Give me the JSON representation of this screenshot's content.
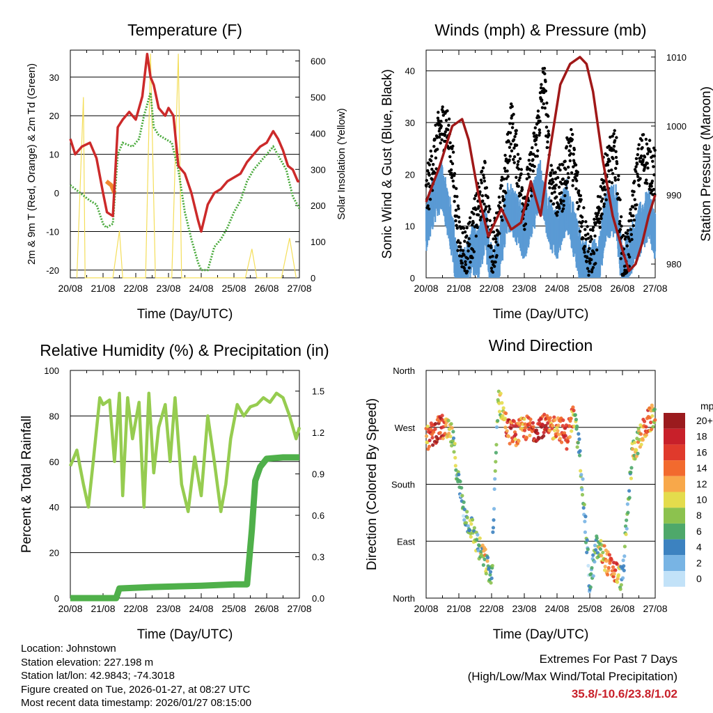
{
  "panels": {
    "temperature": {
      "title": "Temperature (F)",
      "ylabel_left": "2m & 9m T (Red, Orange) & 2m Td (Green)",
      "ylabel_right": "Solar Insolation (Yellow)",
      "xlabel": "Time (Day/UTC)"
    },
    "winds": {
      "title": "Winds (mph) & Pressure (mb)",
      "ylabel_left": "Sonic Wind & Gust (Blue, Black)",
      "ylabel_right": "Station Pressure (Maroon)",
      "xlabel": "Time (Day/UTC)"
    },
    "humidity": {
      "title": "Relative Humidity (%) & Precipitation (in)",
      "ylabel_left": "Percent & Total Rainfall",
      "xlabel": "Time (Day/UTC)"
    },
    "direction": {
      "title": "Wind Direction",
      "ylabel_left": "Direction (Colored By Speed)",
      "xlabel": "Time (Day/UTC)",
      "colorbar_title": "mph",
      "colorbar_labels": [
        "20+",
        "18",
        "16",
        "14",
        "12",
        "10",
        "8",
        "6",
        "4",
        "2",
        "0"
      ],
      "colorbar_colors": [
        "#9b1b1e",
        "#c8202a",
        "#e03a2c",
        "#f26a2e",
        "#f8a84a",
        "#e4dc4c",
        "#8cc24e",
        "#4ea86a",
        "#3c82c0",
        "#78b4e4",
        "#c2e2f8"
      ]
    }
  },
  "info": {
    "location": "Location: Johnstown",
    "elevation": "Station elevation: 227.198 m",
    "latlon": "Station lat/lon: 42.9843; -74.3018",
    "created": "Figure created on Tue, 2026-01-27, at 08:27 UTC",
    "recent": "Most recent data timestamp: 2026/01/27 08:15:00"
  },
  "extremes": {
    "title": "Extremes For Past 7 Days",
    "subtitle": "(High/Low/Max Wind/Total Precipitation)",
    "values": "35.8/-10.6/23.8/1.02"
  },
  "colors": {
    "temp2m": "#cc2a2a",
    "temp9m": "#f08a30",
    "dewpoint": "#4aaa3c",
    "solar": "#f4de5a",
    "wind": "#5a9ad4",
    "gust": "#000000",
    "pressure": "#a01818",
    "rh": "#96cc50",
    "precip": "#4fb04a"
  },
  "chart_data": [
    {
      "type": "line",
      "title": "Temperature (F)",
      "x_ticks": [
        "20/08",
        "21/08",
        "22/08",
        "23/08",
        "24/08",
        "25/08",
        "26/08",
        "27/08"
      ],
      "ylim": [
        -22,
        37
      ],
      "yticks": [
        -20,
        -10,
        0,
        10,
        20,
        30
      ],
      "y2lim": [
        0,
        630
      ],
      "y2ticks": [
        0,
        100,
        200,
        300,
        400,
        500,
        600
      ],
      "series": [
        {
          "name": "2m T",
          "x": [
            0,
            0.15,
            0.35,
            0.6,
            0.8,
            1.0,
            1.12,
            1.3,
            1.45,
            1.6,
            1.8,
            2.0,
            2.2,
            2.35,
            2.45,
            2.55,
            2.7,
            2.9,
            3.0,
            3.15,
            3.3,
            3.5,
            3.7,
            3.9,
            4.0,
            4.2,
            4.4,
            4.6,
            4.8,
            5.0,
            5.2,
            5.4,
            5.6,
            5.8,
            6.0,
            6.2,
            6.35,
            6.5,
            6.65,
            6.8,
            6.95,
            7.0
          ],
          "values": [
            14,
            10,
            12,
            13,
            9,
            0,
            -5,
            -6,
            17,
            19,
            21,
            19,
            25,
            36,
            30,
            28,
            22,
            20,
            22,
            20,
            7,
            5,
            0,
            -7,
            -10,
            -3,
            0,
            1,
            3,
            4,
            5,
            8,
            10,
            12,
            13,
            16,
            14,
            11,
            7,
            6,
            3,
            3
          ]
        },
        {
          "name": "9m T",
          "x": [
            1.1,
            1.25,
            1.35
          ],
          "values": [
            3,
            2,
            0
          ]
        },
        {
          "name": "2m Td",
          "x": [
            0,
            0.3,
            0.6,
            0.8,
            1.0,
            1.1,
            1.3,
            1.45,
            1.6,
            1.9,
            2.1,
            2.25,
            2.45,
            2.55,
            2.7,
            2.9,
            3.1,
            3.3,
            3.5,
            3.7,
            3.9,
            4.0,
            4.2,
            4.4,
            4.6,
            4.8,
            5.0,
            5.2,
            5.4,
            5.6,
            5.8,
            6.0,
            6.2,
            6.4,
            6.6,
            6.8,
            7.0
          ],
          "values": [
            2,
            0,
            -2,
            -3,
            -8,
            -9,
            -8,
            10,
            13,
            12,
            14,
            20,
            26,
            17,
            15,
            14,
            13,
            6,
            -5,
            -12,
            -18,
            -20,
            -20,
            -14,
            -12,
            -9,
            -5,
            -2,
            3,
            6,
            8,
            10,
            12,
            9,
            6,
            -1,
            -4
          ]
        },
        {
          "name": "Solar Insolation",
          "x": [
            0.2,
            0.4,
            0.45,
            0.6,
            1.3,
            1.5,
            1.6,
            2.3,
            2.45,
            2.6,
            3.1,
            3.3,
            3.4,
            3.55,
            5.35,
            5.55,
            5.7,
            6.45,
            6.7,
            6.9
          ],
          "values": [
            0,
            500,
            0,
            0,
            0,
            130,
            0,
            0,
            620,
            0,
            0,
            620,
            0,
            0,
            0,
            80,
            0,
            0,
            110,
            0
          ]
        }
      ]
    },
    {
      "type": "scatter",
      "title": "Winds (mph) & Pressure (mb)",
      "x_ticks": [
        "20/08",
        "21/08",
        "22/08",
        "23/08",
        "24/08",
        "25/08",
        "26/08",
        "27/08"
      ],
      "ylim": [
        0,
        44
      ],
      "yticks": [
        0,
        10,
        20,
        30,
        40
      ],
      "y2lim": [
        978,
        1011
      ],
      "y2ticks": [
        980,
        990,
        1000,
        1010
      ],
      "series": [
        {
          "name": "Sonic Wind",
          "x": [
            0,
            0.3,
            0.5,
            0.8,
            1.0,
            1.2,
            1.4,
            1.6,
            1.8,
            2.0,
            2.2,
            2.5,
            2.8,
            3.0,
            3.3,
            3.5,
            3.8,
            4.0,
            4.3,
            4.5,
            4.7,
            5.0,
            5.3,
            5.5,
            5.8,
            6.0,
            6.3,
            6.6,
            6.8,
            7.0
          ],
          "values": [
            12,
            18,
            20,
            10,
            2,
            3,
            8,
            6,
            12,
            3,
            5,
            16,
            13,
            10,
            16,
            20,
            12,
            10,
            16,
            11,
            6,
            3,
            6,
            14,
            15,
            3,
            8,
            12,
            14,
            10
          ]
        },
        {
          "name": "Gust",
          "x": [
            0,
            0.2,
            0.4,
            0.6,
            0.8,
            1.0,
            1.2,
            1.4,
            1.6,
            1.8,
            2.0,
            2.2,
            2.4,
            2.6,
            2.8,
            3.0,
            3.2,
            3.4,
            3.6,
            3.8,
            4.0,
            4.2,
            4.4,
            4.6,
            4.8,
            5.0,
            5.2,
            5.4,
            5.6,
            5.8,
            6.0,
            6.2,
            6.4,
            6.6,
            6.8,
            7.0
          ],
          "values": [
            15,
            22,
            28,
            30,
            22,
            8,
            5,
            8,
            14,
            18,
            5,
            10,
            18,
            30,
            22,
            14,
            20,
            28,
            38,
            20,
            16,
            18,
            26,
            18,
            10,
            4,
            8,
            18,
            22,
            24,
            3,
            6,
            18,
            24,
            22,
            20
          ]
        },
        {
          "name": "Station Pressure",
          "x": [
            0,
            0.4,
            0.8,
            1.1,
            1.3,
            1.6,
            1.9,
            2.1,
            2.3,
            2.6,
            2.9,
            3.2,
            3.5,
            3.8,
            4.1,
            4.4,
            4.7,
            4.9,
            5.1,
            5.4,
            5.7,
            6.0,
            6.2,
            6.4,
            6.6,
            6.8,
            7.0
          ],
          "values": [
            989,
            994,
            1000,
            1001,
            998,
            990,
            984,
            986,
            988,
            985,
            986,
            992,
            987,
            997,
            1006,
            1009,
            1010,
            1009,
            1005,
            995,
            987,
            982,
            979,
            980,
            983,
            987,
            990
          ]
        }
      ]
    },
    {
      "type": "line",
      "title": "Relative Humidity (%) & Precipitation (in)",
      "x_ticks": [
        "20/08",
        "21/08",
        "22/08",
        "23/08",
        "24/08",
        "25/08",
        "26/08",
        "27/08"
      ],
      "ylim": [
        0,
        100
      ],
      "yticks": [
        0,
        20,
        40,
        60,
        80,
        100
      ],
      "y2lim": [
        0,
        1.65
      ],
      "y2ticks": [
        0.0,
        0.3,
        0.6,
        0.9,
        1.2,
        1.5
      ],
      "series": [
        {
          "name": "Relative Humidity",
          "x": [
            0,
            0.2,
            0.4,
            0.55,
            0.7,
            0.9,
            1.0,
            1.2,
            1.35,
            1.5,
            1.6,
            1.75,
            1.9,
            2.1,
            2.25,
            2.4,
            2.55,
            2.7,
            2.9,
            3.05,
            3.2,
            3.4,
            3.6,
            3.8,
            4.0,
            4.2,
            4.4,
            4.6,
            4.75,
            4.9,
            5.1,
            5.3,
            5.5,
            5.7,
            5.9,
            6.1,
            6.3,
            6.5,
            6.7,
            6.9,
            7.0
          ],
          "values": [
            58,
            65,
            50,
            40,
            60,
            88,
            85,
            87,
            60,
            90,
            45,
            88,
            70,
            86,
            40,
            90,
            55,
            75,
            85,
            60,
            88,
            50,
            38,
            62,
            45,
            80,
            60,
            38,
            50,
            70,
            85,
            80,
            84,
            85,
            88,
            86,
            90,
            88,
            80,
            70,
            75
          ]
        },
        {
          "name": "Total Precipitation",
          "x": [
            0,
            1.4,
            1.5,
            2.5,
            4.0,
            5.0,
            5.4,
            5.55,
            5.65,
            5.8,
            6.0,
            6.5,
            7.0
          ],
          "values": [
            0.0,
            0.0,
            0.07,
            0.08,
            0.09,
            0.1,
            0.1,
            0.5,
            0.85,
            0.95,
            1.01,
            1.02,
            1.02
          ]
        }
      ]
    },
    {
      "type": "scatter",
      "title": "Wind Direction",
      "x_ticks": [
        "20/08",
        "21/08",
        "22/08",
        "23/08",
        "24/08",
        "25/08",
        "26/08",
        "27/08"
      ],
      "yticks": [
        "North",
        "East",
        "South",
        "West",
        "North"
      ],
      "ylim": [
        0,
        360
      ],
      "series": [
        {
          "name": "Direction",
          "x": [
            0,
            0.3,
            0.5,
            0.8,
            1.0,
            1.2,
            1.4,
            1.6,
            1.8,
            2.0,
            2.2,
            2.5,
            2.8,
            3.0,
            3.3,
            3.5,
            3.8,
            4.0,
            4.3,
            4.5,
            4.7,
            5.0,
            5.2,
            5.4,
            5.6,
            5.8,
            6.0,
            6.3,
            6.6,
            6.8,
            7.0
          ],
          "values": [
            250,
            265,
            270,
            255,
            180,
            130,
            110,
            80,
            60,
            30,
            320,
            265,
            260,
            270,
            265,
            275,
            265,
            275,
            255,
            290,
            230,
            20,
            80,
            70,
            50,
            40,
            30,
            230,
            260,
            280,
            290
          ],
          "speeds": [
            12,
            18,
            16,
            8,
            3,
            4,
            8,
            6,
            10,
            4,
            6,
            16,
            14,
            12,
            18,
            20,
            14,
            12,
            16,
            12,
            6,
            3,
            6,
            12,
            14,
            15,
            4,
            8,
            12,
            14,
            10
          ]
        }
      ]
    }
  ]
}
